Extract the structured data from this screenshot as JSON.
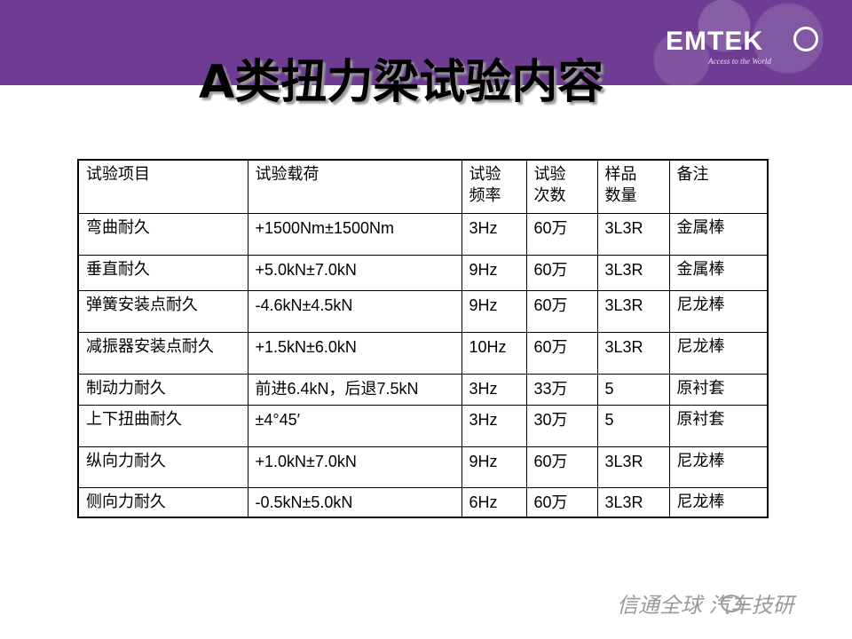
{
  "header": {
    "logo_text": "EMTEK",
    "logo_tagline": "Access to the World"
  },
  "title": "A类扭力梁试验内容",
  "table": {
    "headers": [
      "试验项目",
      "试验载荷",
      "试验 频率",
      "试验 次数",
      "样品 数量",
      "备注"
    ],
    "rows": [
      [
        "弯曲耐久",
        "+1500Nm±1500Nm",
        "3Hz",
        "60万",
        "3L3R",
        "金属棒"
      ],
      [
        "垂直耐久",
        "+5.0kN±7.0kN",
        "9Hz",
        "60万",
        "3L3R",
        "金属棒"
      ],
      [
        "弹簧安装点耐久",
        "-4.6kN±4.5kN",
        "9Hz",
        "60万",
        "3L3R",
        "尼龙棒"
      ],
      [
        "减振器安装点耐久",
        "+1.5kN±6.0kN",
        "10Hz",
        "60万",
        "3L3R",
        "尼龙棒"
      ],
      [
        "制动力耐久",
        "前进6.4kN，后退7.5kN",
        "3Hz",
        "33万",
        "5",
        "原衬套"
      ],
      [
        "上下扭曲耐久",
        "±4°45′",
        "3Hz",
        "30万",
        "5",
        "原衬套"
      ],
      [
        "纵向力耐久",
        "+1.0kN±7.0kN",
        "9Hz",
        "60万",
        "3L3R",
        "尼龙棒"
      ],
      [
        "侧向力耐久",
        "-0.5kN±5.0kN",
        "6Hz",
        "60万",
        "3L3R",
        "尼龙棒"
      ]
    ]
  },
  "footer": {
    "signature": "信通全球 汽车技研"
  }
}
